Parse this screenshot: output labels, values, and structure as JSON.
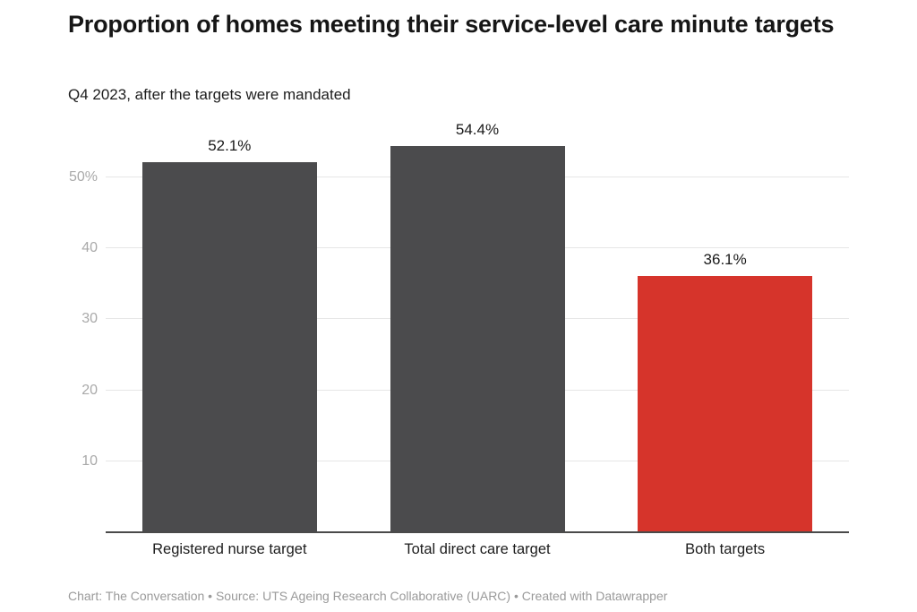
{
  "header": {
    "title": "Proportion of homes meeting their service-level care minute targets",
    "subtitle": "Q4 2023, after the targets were mandated"
  },
  "footer": {
    "text": "Chart: The Conversation • Source: UTS Ageing Research Collaborative (UARC) • Created with Datawrapper"
  },
  "colors": {
    "bar_default": "#4b4b4d",
    "bar_highlight": "#d6342b",
    "gridline": "#e6e6e6",
    "axis_baseline": "#4a4a4a",
    "tick_label": "#a9a9a9",
    "value_label": "#1a1a1a",
    "category_label": "#1d1d1d",
    "footer_text": "#9a9a9a"
  },
  "chart_data": {
    "type": "bar",
    "title": "Proportion of homes meeting their service-level care minute targets",
    "subtitle": "Q4 2023, after the targets were mandated",
    "categories": [
      "Registered nurse target",
      "Total direct care target",
      "Both targets"
    ],
    "values": [
      52.1,
      54.4,
      36.1
    ],
    "value_labels": [
      "52.1%",
      "54.4%",
      "36.1%"
    ],
    "bar_colors": [
      "#4b4b4d",
      "#4b4b4d",
      "#d6342b"
    ],
    "xlabel": "",
    "ylabel": "",
    "y_ticks": [
      10,
      20,
      30,
      40,
      50
    ],
    "y_tick_labels": [
      "10",
      "20",
      "30",
      "40",
      "50%"
    ],
    "ylim": [
      0,
      57.3
    ],
    "grid": "horizontal",
    "legend": "none",
    "source_note": "Chart: The Conversation • Source: UTS Ageing Research Collaborative (UARC) • Created with Datawrapper"
  }
}
